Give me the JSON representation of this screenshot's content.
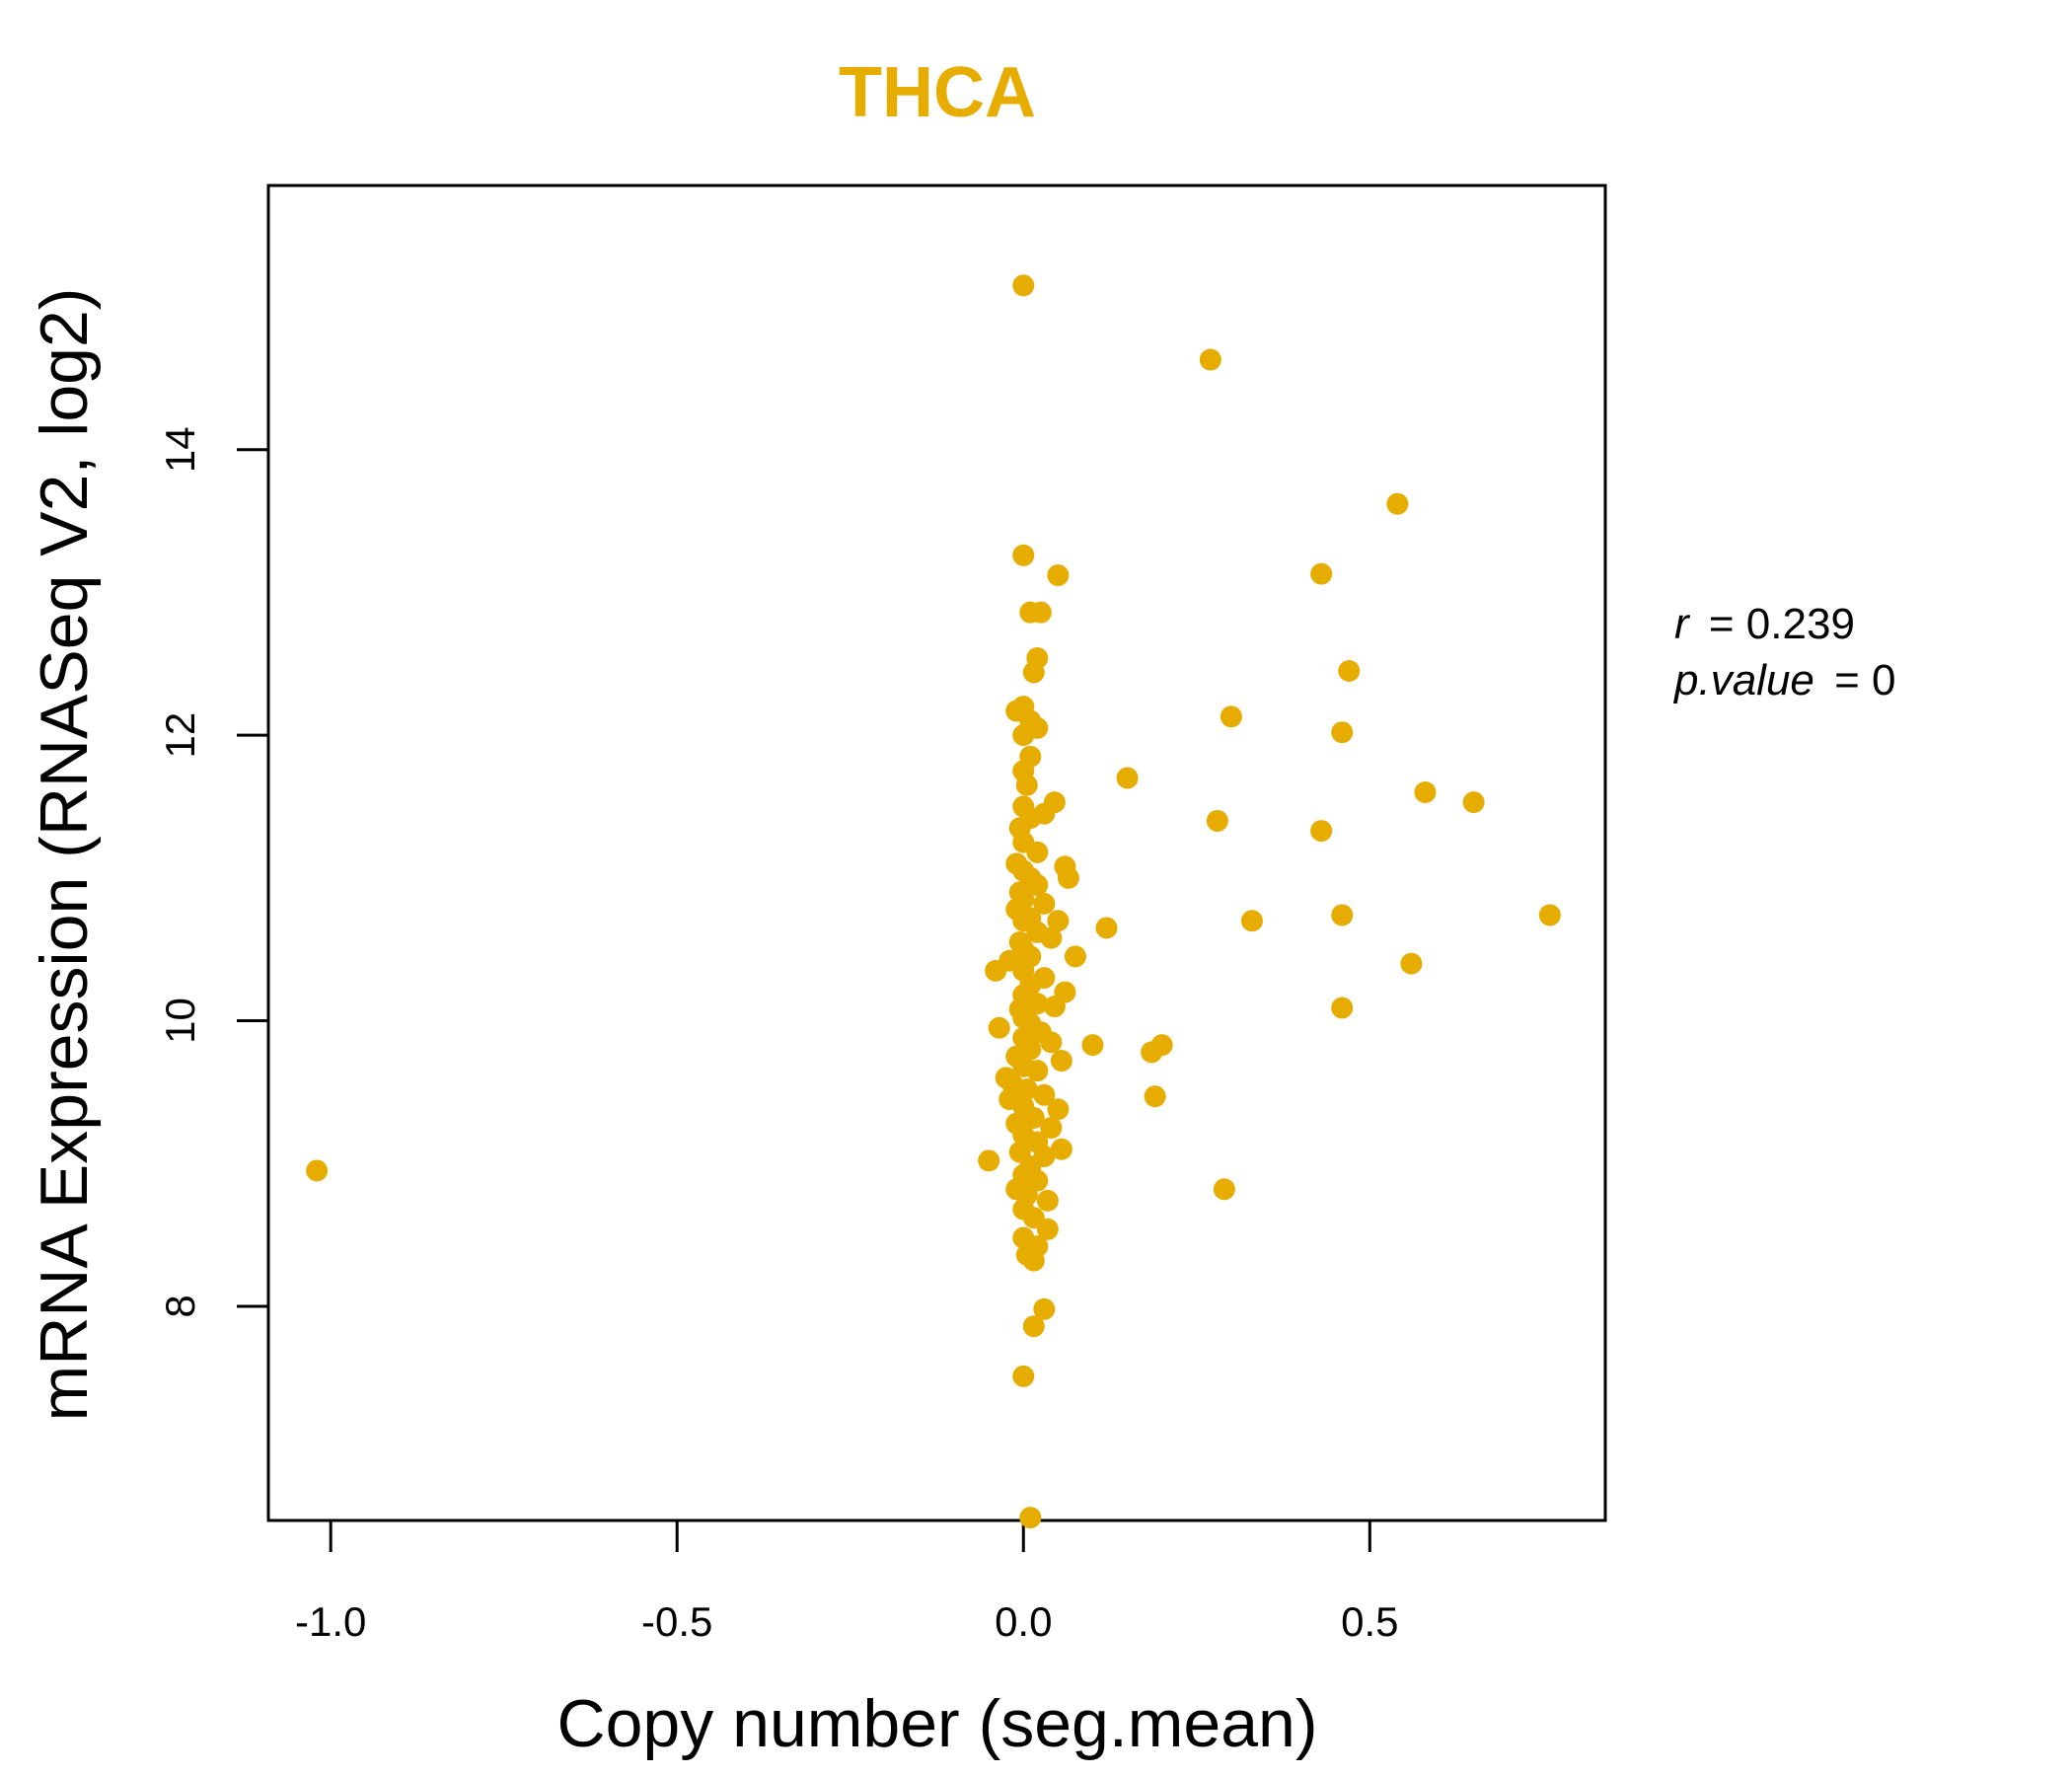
{
  "chart_data": {
    "type": "scatter",
    "title": "THCA",
    "xlabel": "Copy number (seg.mean)",
    "ylabel": "mRNA Expression (RNASeq V2, log2)",
    "xlim": [
      -1.09,
      0.84
    ],
    "ylim": [
      6.5,
      15.85
    ],
    "x_ticks": [
      -1.0,
      -0.5,
      0.0,
      0.5
    ],
    "x_tick_labels": [
      "-1.0",
      "-0.5",
      "0.0",
      "0.5"
    ],
    "y_ticks": [
      8,
      10,
      12,
      14
    ],
    "y_tick_labels": [
      "8",
      "10",
      "12",
      "14"
    ],
    "point_color": "#E6AC00",
    "grid": false,
    "annotation": {
      "r_label": "r",
      "r_value": "= 0.239",
      "p_label": "p.value",
      "p_value": "= 0"
    },
    "points": [
      {
        "x": -1.02,
        "y": 8.95
      },
      {
        "x": 0.0,
        "y": 15.15
      },
      {
        "x": 0.27,
        "y": 14.63
      },
      {
        "x": 0.54,
        "y": 13.62
      },
      {
        "x": 0.0,
        "y": 13.26
      },
      {
        "x": 0.05,
        "y": 13.12
      },
      {
        "x": 0.43,
        "y": 13.13
      },
      {
        "x": 0.01,
        "y": 12.86
      },
      {
        "x": 0.025,
        "y": 12.86
      },
      {
        "x": 0.02,
        "y": 12.54
      },
      {
        "x": 0.015,
        "y": 12.44
      },
      {
        "x": 0.47,
        "y": 12.45
      },
      {
        "x": 0.0,
        "y": 12.2
      },
      {
        "x": -0.01,
        "y": 12.17
      },
      {
        "x": 0.01,
        "y": 12.1
      },
      {
        "x": 0.02,
        "y": 12.05
      },
      {
        "x": 0.0,
        "y": 12.0
      },
      {
        "x": 0.3,
        "y": 12.13
      },
      {
        "x": 0.46,
        "y": 12.02
      },
      {
        "x": 0.01,
        "y": 11.85
      },
      {
        "x": 0.0,
        "y": 11.75
      },
      {
        "x": 0.005,
        "y": 11.65
      },
      {
        "x": 0.15,
        "y": 11.7
      },
      {
        "x": 0.58,
        "y": 11.6
      },
      {
        "x": 0.65,
        "y": 11.53
      },
      {
        "x": 0.045,
        "y": 11.53
      },
      {
        "x": 0.03,
        "y": 11.45
      },
      {
        "x": 0.0,
        "y": 11.5
      },
      {
        "x": 0.01,
        "y": 11.42
      },
      {
        "x": 0.28,
        "y": 11.4
      },
      {
        "x": 0.43,
        "y": 11.33
      },
      {
        "x": -0.005,
        "y": 11.35
      },
      {
        "x": 0.0,
        "y": 11.25
      },
      {
        "x": 0.02,
        "y": 11.18
      },
      {
        "x": -0.01,
        "y": 11.1
      },
      {
        "x": 0.0,
        "y": 11.05
      },
      {
        "x": 0.01,
        "y": 11.0
      },
      {
        "x": 0.06,
        "y": 11.08
      },
      {
        "x": 0.065,
        "y": 11.0
      },
      {
        "x": 0.02,
        "y": 10.95
      },
      {
        "x": -0.005,
        "y": 10.9
      },
      {
        "x": 0.0,
        "y": 10.85
      },
      {
        "x": 0.03,
        "y": 10.82
      },
      {
        "x": -0.01,
        "y": 10.78
      },
      {
        "x": 0.01,
        "y": 10.72
      },
      {
        "x": 0.0,
        "y": 10.7
      },
      {
        "x": 0.05,
        "y": 10.7
      },
      {
        "x": 0.12,
        "y": 10.65
      },
      {
        "x": 0.33,
        "y": 10.7
      },
      {
        "x": 0.46,
        "y": 10.74
      },
      {
        "x": 0.76,
        "y": 10.74
      },
      {
        "x": 0.02,
        "y": 10.62
      },
      {
        "x": 0.04,
        "y": 10.58
      },
      {
        "x": -0.005,
        "y": 10.55
      },
      {
        "x": 0.0,
        "y": 10.5
      },
      {
        "x": 0.01,
        "y": 10.45
      },
      {
        "x": 0.075,
        "y": 10.45
      },
      {
        "x": -0.02,
        "y": 10.42
      },
      {
        "x": -0.04,
        "y": 10.35
      },
      {
        "x": 0.56,
        "y": 10.4
      },
      {
        "x": 0.0,
        "y": 10.35
      },
      {
        "x": 0.03,
        "y": 10.3
      },
      {
        "x": 0.01,
        "y": 10.25
      },
      {
        "x": 0.06,
        "y": 10.2
      },
      {
        "x": 0.0,
        "y": 10.18
      },
      {
        "x": 0.02,
        "y": 10.12
      },
      {
        "x": 0.045,
        "y": 10.1
      },
      {
        "x": 0.46,
        "y": 10.09
      },
      {
        "x": -0.005,
        "y": 10.08
      },
      {
        "x": 0.0,
        "y": 10.02
      },
      {
        "x": 0.01,
        "y": 9.98
      },
      {
        "x": -0.035,
        "y": 9.95
      },
      {
        "x": 0.025,
        "y": 9.92
      },
      {
        "x": 0.0,
        "y": 9.88
      },
      {
        "x": 0.04,
        "y": 9.85
      },
      {
        "x": 0.1,
        "y": 9.83
      },
      {
        "x": 0.2,
        "y": 9.83
      },
      {
        "x": 0.185,
        "y": 9.78
      },
      {
        "x": 0.01,
        "y": 9.8
      },
      {
        "x": -0.01,
        "y": 9.75
      },
      {
        "x": 0.055,
        "y": 9.72
      },
      {
        "x": 0.0,
        "y": 9.68
      },
      {
        "x": 0.02,
        "y": 9.65
      },
      {
        "x": -0.025,
        "y": 9.6
      },
      {
        "x": -0.015,
        "y": 9.55
      },
      {
        "x": 0.005,
        "y": 9.52
      },
      {
        "x": 0.03,
        "y": 9.48
      },
      {
        "x": 0.19,
        "y": 9.47
      },
      {
        "x": -0.02,
        "y": 9.45
      },
      {
        "x": 0.0,
        "y": 9.4
      },
      {
        "x": 0.05,
        "y": 9.38
      },
      {
        "x": 0.015,
        "y": 9.32
      },
      {
        "x": -0.01,
        "y": 9.28
      },
      {
        "x": 0.04,
        "y": 9.25
      },
      {
        "x": 0.0,
        "y": 9.2
      },
      {
        "x": 0.02,
        "y": 9.15
      },
      {
        "x": 0.055,
        "y": 9.1
      },
      {
        "x": -0.005,
        "y": 9.08
      },
      {
        "x": 0.03,
        "y": 9.05
      },
      {
        "x": -0.05,
        "y": 9.02
      },
      {
        "x": 0.01,
        "y": 8.98
      },
      {
        "x": 0.0,
        "y": 8.92
      },
      {
        "x": 0.02,
        "y": 8.88
      },
      {
        "x": -0.01,
        "y": 8.82
      },
      {
        "x": 0.29,
        "y": 8.82
      },
      {
        "x": 0.005,
        "y": 8.78
      },
      {
        "x": 0.035,
        "y": 8.74
      },
      {
        "x": 0.0,
        "y": 8.68
      },
      {
        "x": 0.015,
        "y": 8.62
      },
      {
        "x": 0.035,
        "y": 8.54
      },
      {
        "x": 0.0,
        "y": 8.48
      },
      {
        "x": 0.02,
        "y": 8.42
      },
      {
        "x": 0.005,
        "y": 8.36
      },
      {
        "x": 0.015,
        "y": 8.32
      },
      {
        "x": 0.03,
        "y": 7.98
      },
      {
        "x": 0.015,
        "y": 7.86
      },
      {
        "x": 0.0,
        "y": 7.51
      },
      {
        "x": 0.01,
        "y": 6.52
      }
    ]
  }
}
